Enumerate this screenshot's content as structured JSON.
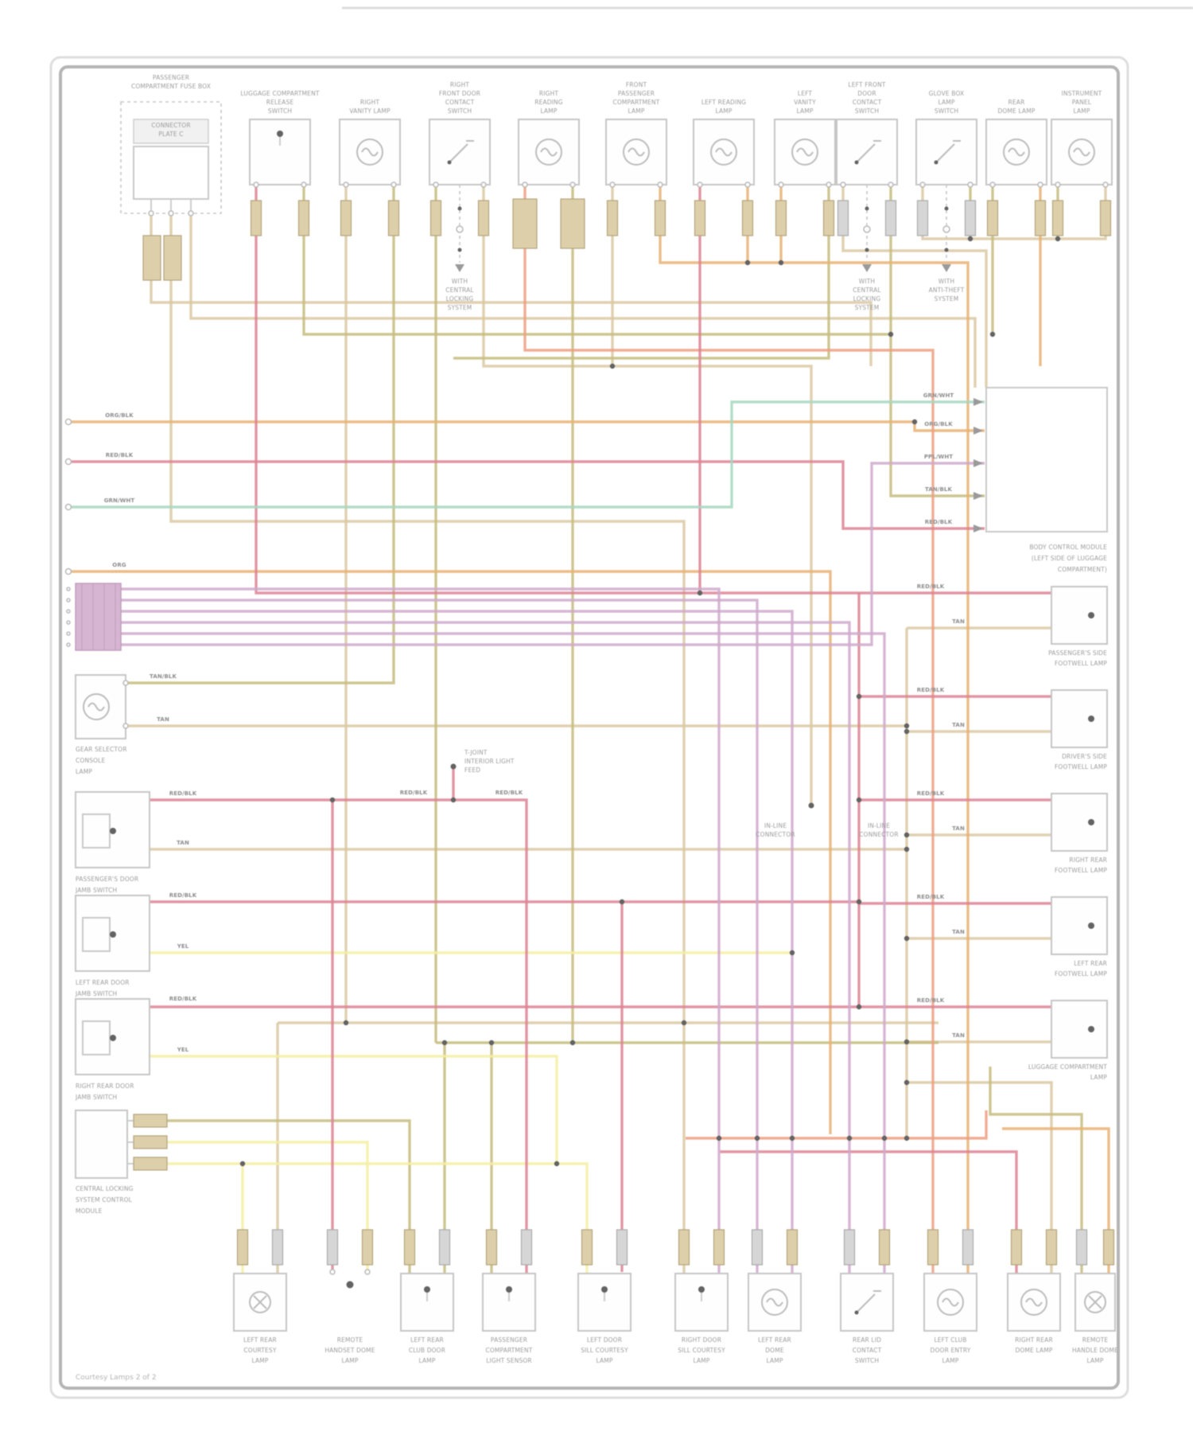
{
  "page": {
    "footer": "Courtesy Lamps 2 of 2"
  },
  "colors": {
    "tan": "#d9c9a3",
    "olive": "#c6bd7f",
    "yellow": "#f5efa3",
    "orange": "#e9b273",
    "salmon": "#eda084",
    "crimson": "#dd8494",
    "violet": "#cfa9cc",
    "teal": "#a6d7c1",
    "outline": "#c6c6c6",
    "label": "#9c9c9c"
  },
  "top_components": [
    {
      "id": "fuse-box",
      "type": "fusebox",
      "label_lines": [
        "PASSENGER",
        "COMPARTMENT FUSE BOX"
      ],
      "inner_lines": [
        "CONNECTOR",
        "PLATE C"
      ]
    },
    {
      "id": "luggage-release-switch",
      "type": "connector",
      "label_lines": [
        "LUGGAGE COMPARTMENT",
        "RELEASE",
        "SWITCH"
      ]
    },
    {
      "id": "right-vanity-lamp",
      "type": "bulb",
      "label_lines": [
        "RIGHT",
        "VANITY LAMP"
      ]
    },
    {
      "id": "right-door-contact-switch",
      "type": "switch",
      "label_lines": [
        "RIGHT",
        "FRONT DOOR",
        "CONTACT",
        "SWITCH"
      ],
      "note_lines": [
        "WITH",
        "CENTRAL",
        "LOCKING",
        "SYSTEM"
      ]
    },
    {
      "id": "right-reading-lamp",
      "type": "bulb",
      "label_lines": [
        "RIGHT",
        "READING",
        "LAMP"
      ]
    },
    {
      "id": "front-compartment-lamp",
      "type": "bulb",
      "label_lines": [
        "FRONT",
        "PASSENGER",
        "COMPARTMENT",
        "LAMP"
      ]
    },
    {
      "id": "left-reading-lamp",
      "type": "bulb",
      "label_lines": [
        "LEFT READING",
        "LAMP"
      ]
    },
    {
      "id": "left-vanity-lamp",
      "type": "bulb",
      "label_lines": [
        "LEFT",
        "VANITY",
        "LAMP"
      ]
    },
    {
      "id": "left-door-contact-switch",
      "type": "switch",
      "label_lines": [
        "LEFT FRONT",
        "DOOR",
        "CONTACT",
        "SWITCH"
      ],
      "note_lines": [
        "WITH",
        "CENTRAL",
        "LOCKING",
        "SYSTEM"
      ]
    },
    {
      "id": "glove-box-lamp-switch",
      "type": "switch",
      "label_lines": [
        "GLOVE BOX",
        "LAMP",
        "SWITCH"
      ],
      "note_lines": [
        "WITH",
        "ANTI-THEFT",
        "SYSTEM"
      ]
    },
    {
      "id": "rear-dome-lamp",
      "type": "bulb",
      "label_lines": [
        "REAR",
        "DOME LAMP"
      ]
    },
    {
      "id": "instrument-panel-lamp",
      "type": "bulb",
      "label_lines": [
        "INSTRUMENT",
        "PANEL",
        "LAMP"
      ]
    }
  ],
  "right_block": {
    "caption_lines": [
      "BODY CONTROL MODULE",
      "(LEFT SIDE OF LUGGAGE",
      "COMPARTMENT)"
    ],
    "inputs": [
      {
        "tag": "GRN/WHT"
      },
      {
        "tag": "ORG/BLK"
      },
      {
        "tag": "PPL/WHT"
      },
      {
        "tag": "TAN/BLK"
      },
      {
        "tag": "RED/BLK"
      }
    ]
  },
  "right_modules": [
    {
      "power_tag": "RED/BLK",
      "ground_tag": "TAN",
      "caption_lines": [
        "PASSENGER'S SIDE",
        "FOOTWELL LAMP"
      ]
    },
    {
      "power_tag": "RED/BLK",
      "ground_tag": "TAN",
      "caption_lines": [
        "DRIVER'S SIDE",
        "FOOTWELL LAMP"
      ]
    },
    {
      "power_tag": "RED/BLK",
      "ground_tag": "TAN",
      "caption_lines": [
        "RIGHT REAR",
        "FOOTWELL LAMP"
      ]
    },
    {
      "power_tag": "RED/BLK",
      "ground_tag": "TAN",
      "caption_lines": [
        "LEFT REAR",
        "FOOTWELL LAMP"
      ]
    },
    {
      "power_tag": "RED/BLK",
      "ground_tag": "TAN",
      "caption_lines": [
        "LUGGAGE COMPARTMENT",
        "LAMP"
      ]
    }
  ],
  "left_entries": [
    {
      "tag": "ORG/BLK"
    },
    {
      "tag": "RED/BLK"
    },
    {
      "tag": "GRN/WHT"
    },
    {
      "tag": "ORG"
    }
  ],
  "left_lamp": {
    "wire_tags": [
      "TAN/BLK",
      "TAN"
    ],
    "caption_lines": [
      "GEAR SELECTOR",
      "CONSOLE",
      "LAMP"
    ]
  },
  "left_switches": [
    {
      "power_tag": "RED/BLK",
      "ground_tag": "TAN",
      "caption_lines": [
        "PASSENGER'S DOOR",
        "JAMB SWITCH"
      ]
    },
    {
      "power_tag": "RED/BLK",
      "ground_tag": "YEL",
      "caption_lines": [
        "LEFT REAR DOOR",
        "JAMB SWITCH"
      ]
    },
    {
      "power_tag": "RED/BLK",
      "ground_tag": "YEL",
      "caption_lines": [
        "RIGHT REAR DOOR",
        "JAMB SWITCH"
      ]
    }
  ],
  "left_module": {
    "caption_lines": [
      "CENTRAL LOCKING",
      "SYSTEM CONTROL",
      "MODULE"
    ]
  },
  "mid_labels": {
    "tjoint_lines": [
      "T-JOINT",
      "INTERIOR LIGHT",
      "FEED"
    ],
    "bus_tag_1": "RED/BLK",
    "bus_tag_2": "RED/BLK",
    "inline1_lines": [
      "IN-LINE",
      "CONNECTOR"
    ],
    "inline2_lines": [
      "IN-LINE",
      "CONNECTOR"
    ]
  },
  "bottom_components": [
    {
      "type": "bulb-cross",
      "caption_lines": [
        "LEFT REAR",
        "COURTESY",
        "LAMP"
      ]
    },
    {
      "type": "dot",
      "caption_lines": [
        "REMOTE",
        "HANDSET DOME",
        "LAMP"
      ]
    },
    {
      "type": "dot",
      "caption_lines": [
        "LEFT REAR",
        "CLUB DOOR",
        "LAMP"
      ]
    },
    {
      "type": "dot",
      "caption_lines": [
        "PASSENGER",
        "COMPARTMENT",
        "LIGHT SENSOR"
      ]
    },
    {
      "type": "dot",
      "caption_lines": [
        "LEFT DOOR",
        "SILL COURTESY",
        "LAMP"
      ]
    },
    {
      "type": "dot",
      "caption_lines": [
        "RIGHT DOOR",
        "SILL COURTESY",
        "LAMP"
      ]
    },
    {
      "type": "bulb",
      "caption_lines": [
        "LEFT REAR",
        "DOME",
        "LAMP"
      ]
    },
    {
      "type": "switch",
      "caption_lines": [
        "REAR LID",
        "CONTACT",
        "SWITCH"
      ]
    },
    {
      "type": "bulb",
      "caption_lines": [
        "LEFT CLUB",
        "DOOR ENTRY",
        "LAMP"
      ]
    },
    {
      "type": "bulb",
      "caption_lines": [
        "RIGHT REAR",
        "DOME LAMP"
      ]
    },
    {
      "type": "bulb",
      "caption_lines": [
        "REMOTE",
        "HANDLE DOME",
        "LAMP"
      ]
    }
  ]
}
